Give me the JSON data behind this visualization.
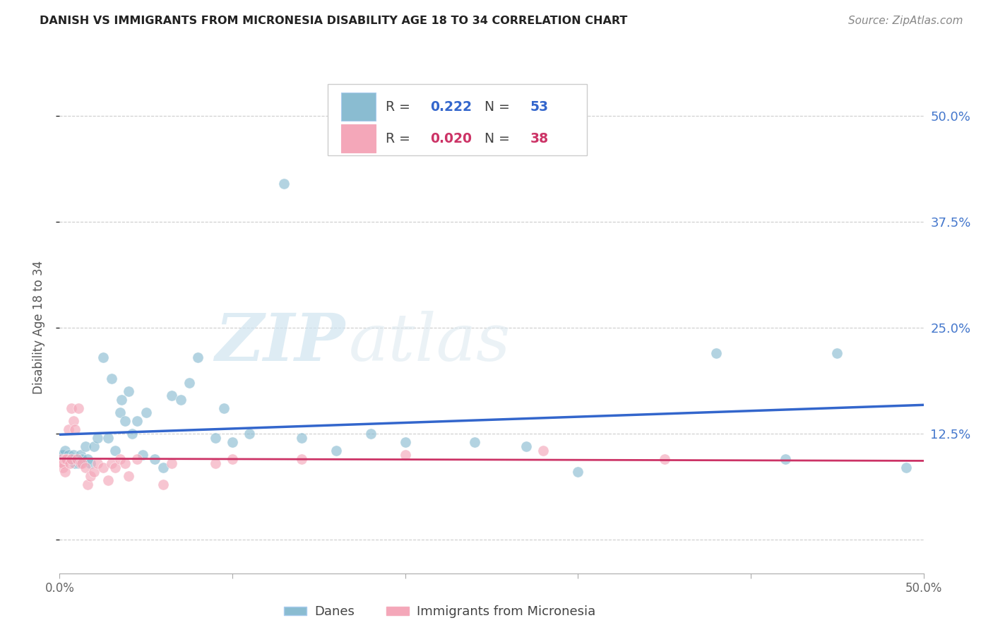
{
  "title": "DANISH VS IMMIGRANTS FROM MICRONESIA DISABILITY AGE 18 TO 34 CORRELATION CHART",
  "source_text": "Source: ZipAtlas.com",
  "ylabel": "Disability Age 18 to 34",
  "xlim": [
    0.0,
    0.5
  ],
  "ylim": [
    -0.04,
    0.54
  ],
  "yticks": [
    0.0,
    0.125,
    0.25,
    0.375,
    0.5
  ],
  "xtick_positions": [
    0.0,
    0.1,
    0.2,
    0.3,
    0.4,
    0.5
  ],
  "legend_label1": "Danes",
  "legend_label2": "Immigrants from Micronesia",
  "r1": "0.222",
  "n1": "53",
  "r2": "0.020",
  "n2": "38",
  "color_blue": "#8abcd1",
  "color_pink": "#f4a7b9",
  "line_color_blue": "#3366cc",
  "line_color_pink": "#cc3366",
  "watermark_zip": "ZIP",
  "watermark_atlas": "atlas",
  "blue_x": [
    0.001,
    0.002,
    0.003,
    0.004,
    0.005,
    0.005,
    0.006,
    0.007,
    0.008,
    0.009,
    0.01,
    0.011,
    0.012,
    0.013,
    0.015,
    0.016,
    0.018,
    0.02,
    0.022,
    0.025,
    0.028,
    0.03,
    0.032,
    0.035,
    0.036,
    0.038,
    0.04,
    0.042,
    0.045,
    0.048,
    0.05,
    0.055,
    0.06,
    0.065,
    0.07,
    0.075,
    0.08,
    0.09,
    0.095,
    0.1,
    0.11,
    0.13,
    0.14,
    0.16,
    0.18,
    0.2,
    0.24,
    0.27,
    0.3,
    0.38,
    0.42,
    0.45,
    0.49
  ],
  "blue_y": [
    0.1,
    0.1,
    0.105,
    0.095,
    0.1,
    0.095,
    0.095,
    0.095,
    0.1,
    0.09,
    0.095,
    0.09,
    0.1,
    0.095,
    0.11,
    0.095,
    0.09,
    0.11,
    0.12,
    0.215,
    0.12,
    0.19,
    0.105,
    0.15,
    0.165,
    0.14,
    0.175,
    0.125,
    0.14,
    0.1,
    0.15,
    0.095,
    0.085,
    0.17,
    0.165,
    0.185,
    0.215,
    0.12,
    0.155,
    0.115,
    0.125,
    0.42,
    0.12,
    0.105,
    0.125,
    0.115,
    0.115,
    0.11,
    0.08,
    0.22,
    0.095,
    0.22,
    0.085
  ],
  "pink_x": [
    0.001,
    0.001,
    0.002,
    0.002,
    0.003,
    0.003,
    0.004,
    0.005,
    0.006,
    0.007,
    0.007,
    0.008,
    0.009,
    0.01,
    0.011,
    0.012,
    0.013,
    0.015,
    0.016,
    0.018,
    0.02,
    0.022,
    0.025,
    0.028,
    0.03,
    0.032,
    0.035,
    0.038,
    0.04,
    0.045,
    0.06,
    0.065,
    0.09,
    0.1,
    0.14,
    0.2,
    0.28,
    0.35
  ],
  "pink_y": [
    0.095,
    0.09,
    0.085,
    0.09,
    0.08,
    0.095,
    0.095,
    0.13,
    0.09,
    0.095,
    0.155,
    0.14,
    0.13,
    0.095,
    0.155,
    0.09,
    0.09,
    0.085,
    0.065,
    0.075,
    0.08,
    0.09,
    0.085,
    0.07,
    0.09,
    0.085,
    0.095,
    0.09,
    0.075,
    0.095,
    0.065,
    0.09,
    0.09,
    0.095,
    0.095,
    0.1,
    0.105,
    0.095
  ]
}
